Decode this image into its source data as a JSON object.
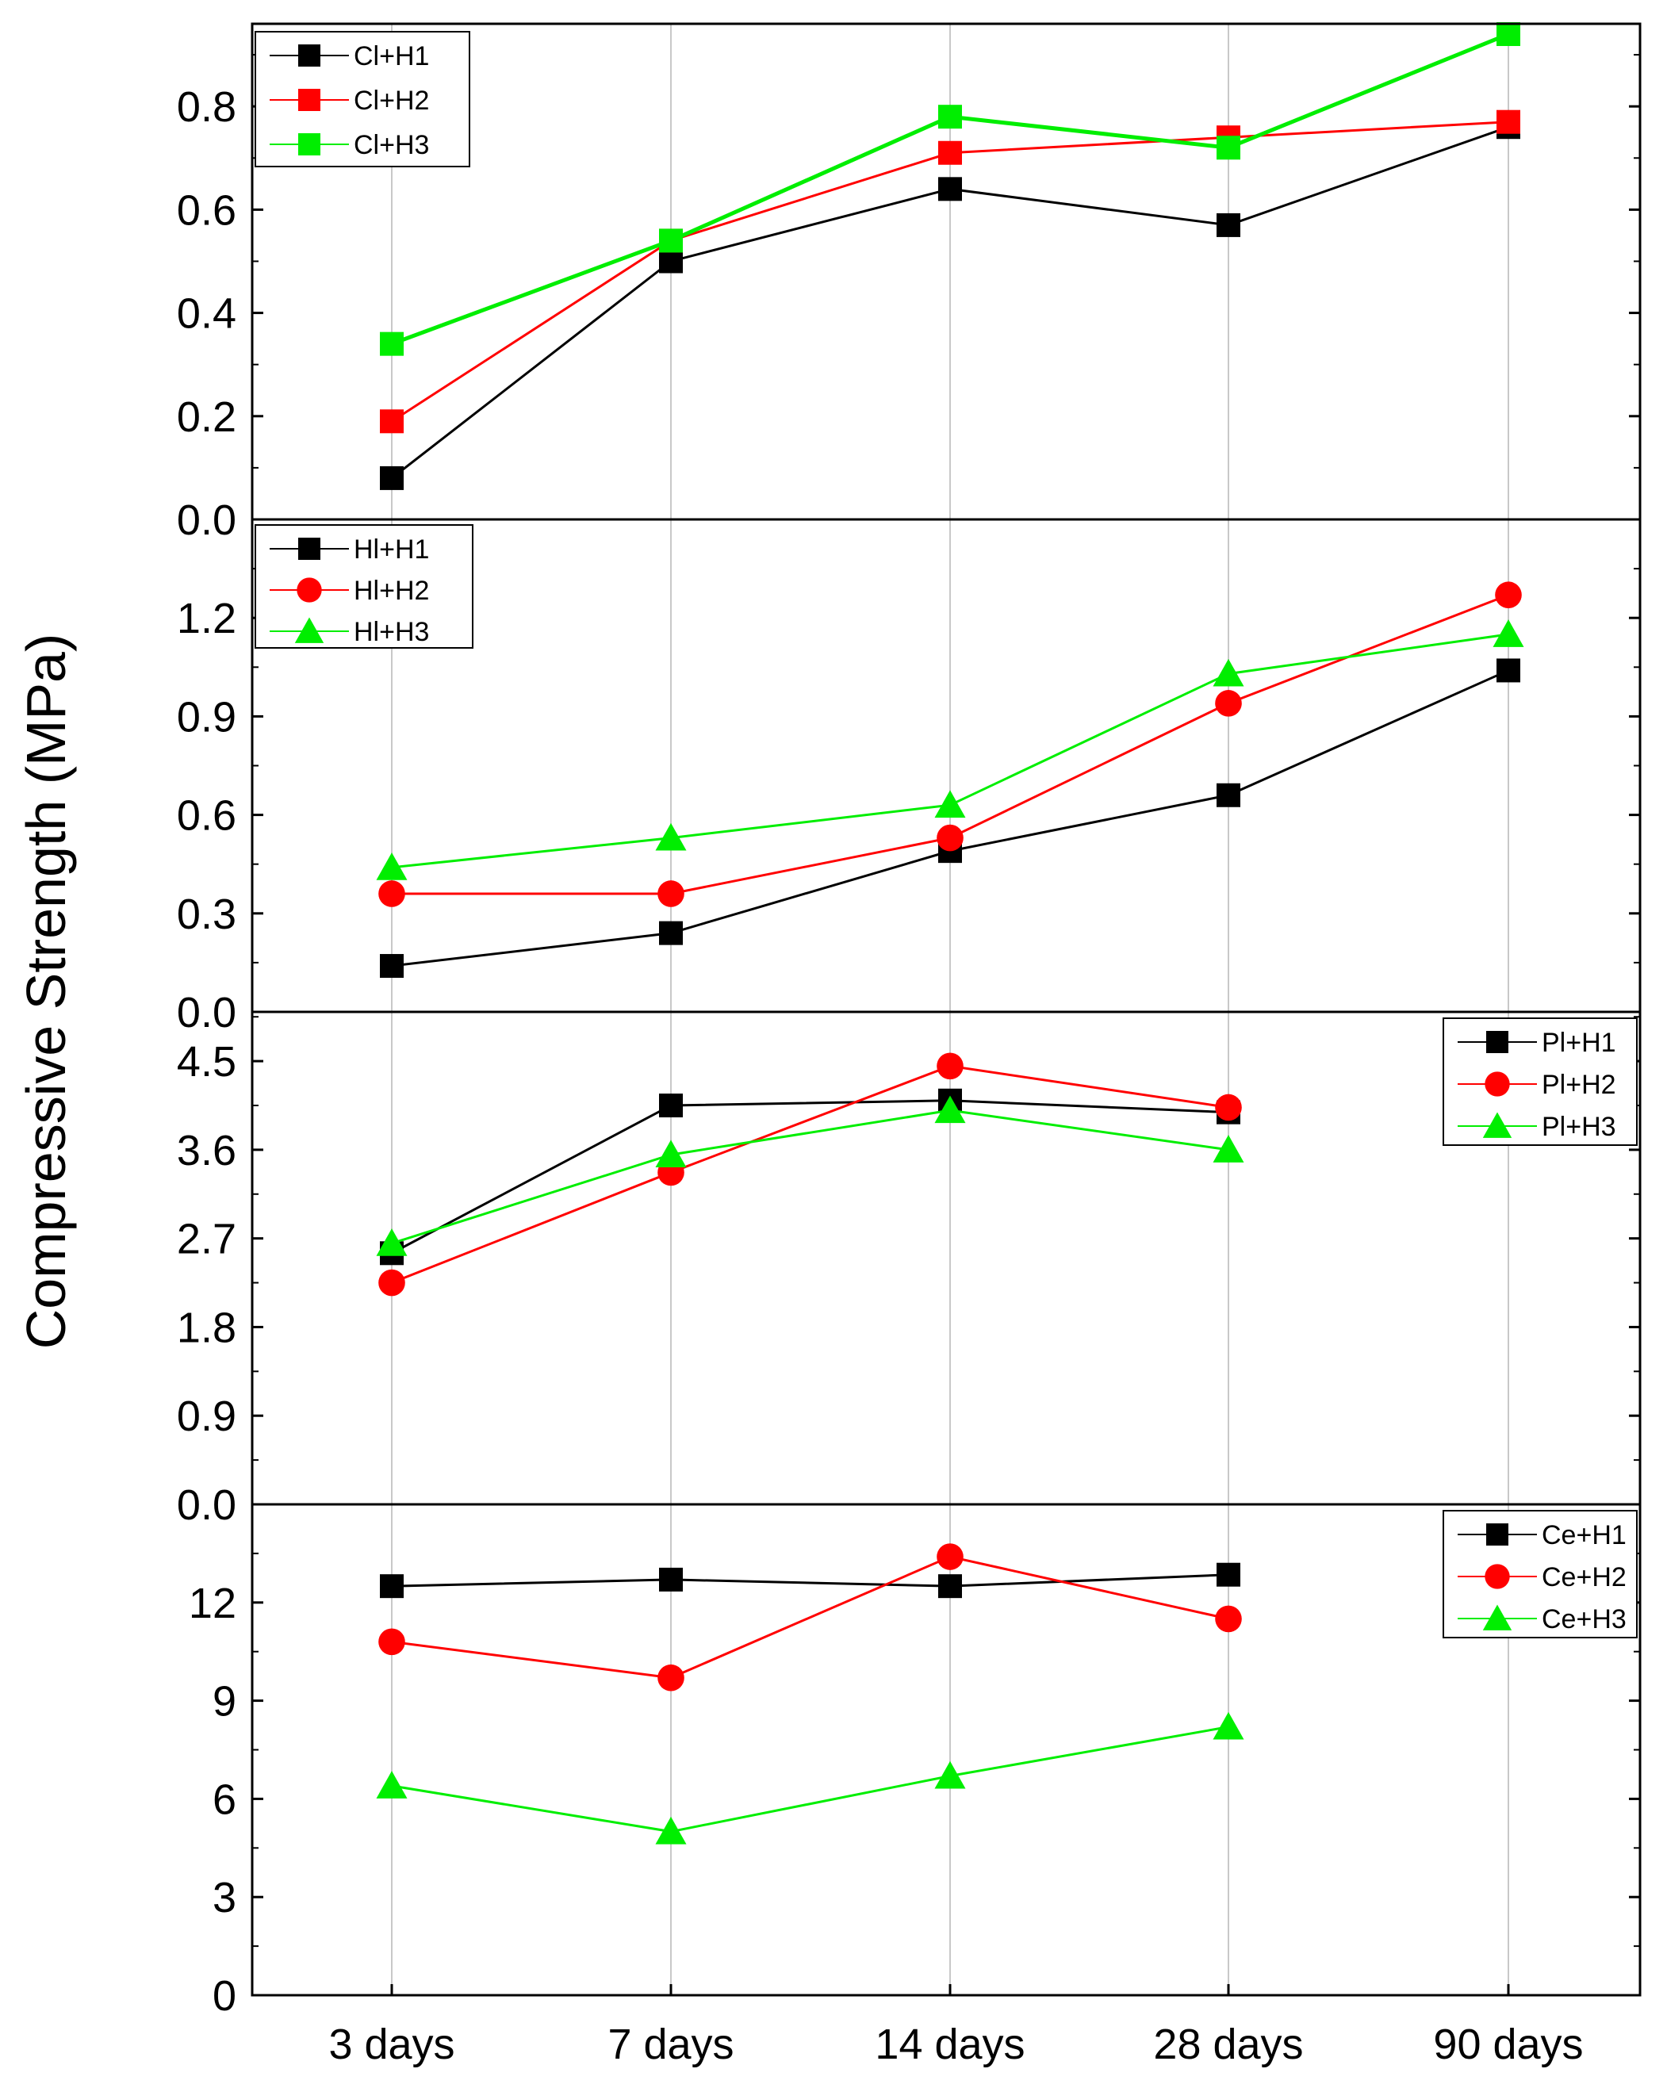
{
  "figure": {
    "ylabel": "Compressive Strength (MPa)"
  },
  "colors": {
    "H1": "#000000",
    "H2": "#ff0000",
    "H3": "#00ee00",
    "grid": "#c8c8c8"
  },
  "chart_data": [
    {
      "type": "line",
      "categories": [
        "3 days",
        "7 days",
        "14 days",
        "28 days",
        "90 days"
      ],
      "ylim": [
        0,
        0.96
      ],
      "yticks": [
        "0.0",
        "0.2",
        "0.4",
        "0.6",
        "0.8"
      ],
      "legend_position": "top-left",
      "series": [
        {
          "name": "Cl+H1",
          "marker": "square",
          "color": "#000000",
          "values": [
            0.08,
            0.5,
            0.64,
            0.57,
            0.76
          ]
        },
        {
          "name": "Cl+H2",
          "marker": "square",
          "color": "#ff0000",
          "values": [
            0.19,
            0.54,
            0.71,
            0.74,
            0.77
          ]
        },
        {
          "name": "Cl+H3",
          "marker": "square",
          "color": "#00ee00",
          "values": [
            0.34,
            0.54,
            0.78,
            0.72,
            0.94
          ]
        }
      ]
    },
    {
      "type": "line",
      "categories": [
        "3 days",
        "7 days",
        "14 days",
        "28 days",
        "90 days"
      ],
      "ylim": [
        0,
        1.5
      ],
      "yticks": [
        "0.0",
        "0.3",
        "0.6",
        "0.9",
        "1.2"
      ],
      "legend_position": "top-left",
      "series": [
        {
          "name": "Hl+H1",
          "marker": "square",
          "color": "#000000",
          "values": [
            0.14,
            0.24,
            0.49,
            0.66,
            1.04
          ]
        },
        {
          "name": "Hl+H2",
          "marker": "circle",
          "color": "#ff0000",
          "values": [
            0.36,
            0.36,
            0.53,
            0.94,
            1.27
          ]
        },
        {
          "name": "Hl+H3",
          "marker": "triangle",
          "color": "#00ee00",
          "values": [
            0.44,
            0.53,
            0.63,
            1.03,
            1.15
          ]
        }
      ]
    },
    {
      "type": "line",
      "categories": [
        "3 days",
        "7 days",
        "14 days",
        "28 days",
        "90 days"
      ],
      "ylim": [
        0,
        5.0
      ],
      "yticks": [
        "0.0",
        "0.9",
        "1.8",
        "2.7",
        "3.6",
        "4.5"
      ],
      "legend_position": "top-right",
      "series": [
        {
          "name": "Pl+H1",
          "marker": "square",
          "color": "#000000",
          "values": [
            2.55,
            4.05,
            4.1,
            3.98,
            null
          ]
        },
        {
          "name": "Pl+H2",
          "marker": "circle",
          "color": "#ff0000",
          "values": [
            2.25,
            3.37,
            4.45,
            4.03,
            null
          ]
        },
        {
          "name": "Pl+H3",
          "marker": "triangle",
          "color": "#00ee00",
          "values": [
            2.65,
            3.55,
            4.0,
            3.6,
            null
          ]
        }
      ]
    },
    {
      "type": "line",
      "categories": [
        "3 days",
        "7 days",
        "14 days",
        "28 days",
        "90 days"
      ],
      "ylim": [
        0,
        15
      ],
      "yticks": [
        "0",
        "3",
        "6",
        "9",
        "12"
      ],
      "legend_position": "top-right",
      "series": [
        {
          "name": "Ce+H1",
          "marker": "square",
          "color": "#000000",
          "values": [
            12.5,
            12.7,
            12.5,
            12.85,
            null
          ]
        },
        {
          "name": "Ce+H2",
          "marker": "circle",
          "color": "#ff0000",
          "values": [
            10.8,
            9.7,
            13.4,
            11.5,
            null
          ]
        },
        {
          "name": "Ce+H3",
          "marker": "triangle",
          "color": "#00ee00",
          "values": [
            6.4,
            5.0,
            6.7,
            8.2,
            null
          ]
        }
      ]
    }
  ]
}
